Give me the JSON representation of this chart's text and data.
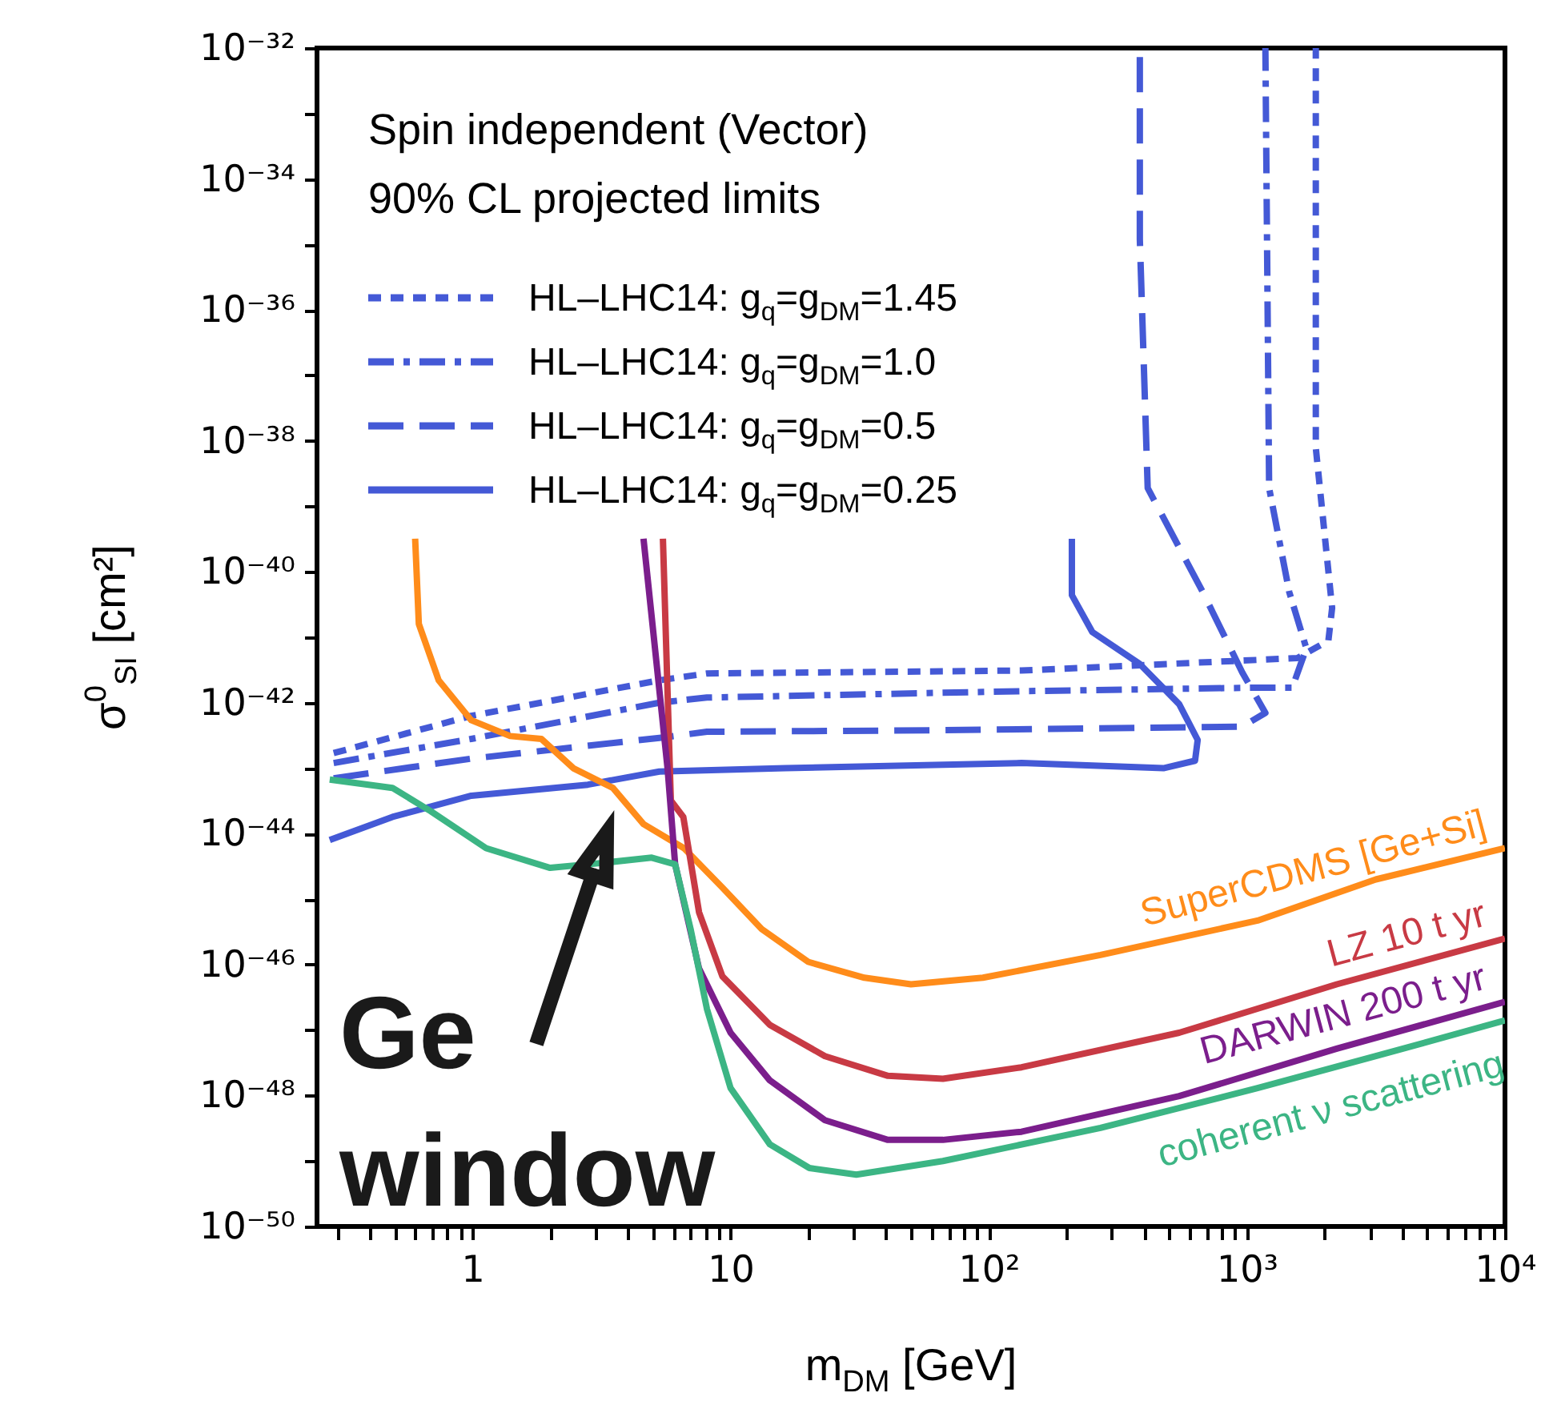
{
  "chart_data": {
    "type": "line",
    "xlabel": "m$_{DM}$ [GeV]",
    "ylabel": "σ$^{0}$$_{SI}$ [cm²]",
    "log": "xy",
    "legend": "top left",
    "grid": false,
    "xlim": [
      0.25,
      10000
    ],
    "ylim": [
      1e-50,
      1e-32
    ],
    "xticks": [
      {
        "value": 0.3,
        "label": null
      },
      {
        "value": 0.4,
        "label": null
      },
      {
        "value": 0.5,
        "label": null
      },
      {
        "value": 0.6,
        "label": null
      },
      {
        "value": 0.7,
        "label": null
      },
      {
        "value": 0.8,
        "label": null
      },
      {
        "value": 0.9,
        "label": null
      },
      1,
      {
        "value": 2,
        "label": null
      },
      {
        "value": 3,
        "label": null
      },
      {
        "value": 4,
        "label": null
      },
      {
        "value": 5,
        "label": null
      },
      {
        "value": 6,
        "label": null
      },
      {
        "value": 7,
        "label": null
      },
      {
        "value": 8,
        "label": null
      },
      {
        "value": 9,
        "label": null
      },
      10,
      {
        "value": 20,
        "label": null
      },
      {
        "value": 30,
        "label": null
      },
      {
        "value": 40,
        "label": null
      },
      {
        "value": 50,
        "label": null
      },
      {
        "value": 60,
        "label": null
      },
      {
        "value": 70,
        "label": null
      },
      {
        "value": 80,
        "label": null
      },
      {
        "value": 90,
        "label": null
      },
      {
        "value": 100,
        "label": "10²"
      },
      {
        "value": 200,
        "label": null
      },
      {
        "value": 300,
        "label": null
      },
      {
        "value": 400,
        "label": null
      },
      {
        "value": 500,
        "label": null
      },
      {
        "value": 600,
        "label": null
      },
      {
        "value": 700,
        "label": null
      },
      {
        "value": 800,
        "label": null
      },
      {
        "value": 900,
        "label": null
      },
      {
        "value": 1000,
        "label": "10³"
      },
      {
        "value": 2000,
        "label": null
      },
      {
        "value": 3000,
        "label": null
      },
      {
        "value": 4000,
        "label": null
      },
      {
        "value": 5000,
        "label": null
      },
      {
        "value": 6000,
        "label": null
      },
      {
        "value": 7000,
        "label": null
      },
      {
        "value": 8000,
        "label": null
      },
      {
        "value": 9000,
        "label": null
      },
      {
        "value": 10000,
        "label": "10⁴"
      }
    ],
    "yticks": [
      {
        "value": 1e-32,
        "label": "10⁻³²"
      },
      {
        "value": 1e-33,
        "label": null
      },
      {
        "value": 1e-34,
        "label": "10⁻³⁴"
      },
      {
        "value": 1e-35,
        "label": null
      },
      {
        "value": 1e-36,
        "label": "10⁻³⁶"
      },
      {
        "value": 1e-37,
        "label": null
      },
      {
        "value": 1e-38,
        "label": "10⁻³⁸"
      },
      {
        "value": 1e-39,
        "label": null
      },
      {
        "value": 1e-40,
        "label": "10⁻⁴⁰"
      },
      {
        "value": 1e-41,
        "label": null
      },
      {
        "value": 1e-42,
        "label": "10⁻⁴²"
      },
      {
        "value": 1e-43,
        "label": null
      },
      {
        "value": 1e-44,
        "label": "10⁻⁴⁴"
      },
      {
        "value": 1e-45,
        "label": null
      },
      {
        "value": 1e-46,
        "label": "10⁻⁴⁶"
      },
      {
        "value": 1e-47,
        "label": null
      },
      {
        "value": 1e-48,
        "label": "10⁻⁴⁸"
      },
      {
        "value": 1e-49,
        "label": null
      },
      {
        "value": 1e-50,
        "label": "10⁻⁵⁰"
      }
    ],
    "annotations": [
      "Spin independent (Vector)",
      "90% CL projected limits",
      "Ge\nwindow"
    ],
    "series": [
      {
        "name": "HL–LHC14: g$_{q}$=g$_{DM}$=1.45",
        "color": "#4459d6",
        "line_style": "dotted",
        "x": [
          0.29,
          0.99,
          5.3,
          8.1,
          134,
          1570,
          2070,
          2140,
          1850,
          1850
        ],
        "values": [
          1.7e-43,
          6.3e-43,
          2.2e-42,
          2.8e-42,
          3.1e-42,
          4.8e-42,
          8.9e-42,
          2.8e-41,
          7.8e-39,
          1e-32
        ]
      },
      {
        "name": "HL–LHC14: g$_{q}$=g$_{DM}$=1.0",
        "color": "#4459d6",
        "line_style": "dashdot",
        "x": [
          0.29,
          0.99,
          5.3,
          8.1,
          134,
          1100,
          1500,
          1700,
          1460,
          1220,
          1180
        ],
        "values": [
          1.2e-43,
          2.8e-43,
          1e-42,
          1.2e-42,
          1.5e-42,
          1.7e-42,
          1.7e-42,
          6.8e-42,
          4.9e-41,
          1.9e-39,
          1e-32
        ]
      },
      {
        "name": "HL–LHC14: g$_{q}$=g$_{DM}$=0.5",
        "color": "#4459d6",
        "line_style": "dashed",
        "x": [
          0.29,
          0.99,
          5.3,
          8.1,
          66.5,
          960,
          1180,
          960,
          675,
          413,
          385,
          385
        ],
        "values": [
          7e-44,
          1.4e-43,
          2.9e-43,
          3.6e-43,
          3.8e-43,
          4.3e-43,
          7e-43,
          2.9e-42,
          4.9e-41,
          1.9e-39,
          1.2e-35,
          1e-32
        ]
      },
      {
        "name": "HL–LHC14: g$_{q}$=g$_{DM}$=0.25",
        "color": "#4459d6",
        "line_style": "solid",
        "x": [
          0.28,
          0.49,
          0.99,
          2.8,
          5.3,
          16.3,
          134,
          475,
          630,
          645,
          547,
          385,
          252,
          210,
          210
        ],
        "values": [
          8e-45,
          1.8e-44,
          3.8e-44,
          5.6e-44,
          8.9e-44,
          1e-43,
          1.2e-43,
          1e-43,
          1.3e-43,
          2.7e-43,
          9.5e-43,
          3.9e-42,
          1.2e-41,
          4.4e-41,
          3.2e-40
        ]
      },
      {
        "name": "SuperCDMS [Ge+Si]",
        "color": "#ff8c1a",
        "x": [
          0.6,
          0.62,
          0.74,
          0.99,
          1.4,
          1.85,
          2.46,
          3.5,
          4.6,
          6.6,
          9.3,
          13.2,
          20,
          33,
          50,
          95,
          271,
          1100,
          3160,
          10000
        ],
        "values": [
          3.2e-40,
          1.6e-41,
          2.2e-42,
          5.4e-43,
          3.1e-43,
          2.8e-43,
          1e-43,
          5e-44,
          1.4e-44,
          6e-45,
          1.5e-45,
          3.5e-46,
          1.1e-46,
          6.3e-47,
          5e-47,
          6.3e-47,
          1.4e-46,
          4.7e-46,
          2e-45,
          6e-45
        ]
      },
      {
        "name": "LZ 10 t yr",
        "color": "#c83a44",
        "x": [
          5.47,
          5.87,
          6.56,
          7.55,
          9.3,
          14.2,
          23.2,
          40.7,
          66.5,
          134,
          547,
          2230,
          10000
        ],
        "values": [
          3.2e-40,
          3.2e-44,
          1.8e-44,
          6.3e-46,
          6.6e-47,
          1.2e-47,
          4e-48,
          2e-48,
          1.8e-48,
          2.7e-48,
          9.1e-48,
          5e-47,
          2.5e-46
        ]
      },
      {
        "name": "DARWIN 200 t yr",
        "color": "#7b1e8c",
        "x": [
          4.6,
          5.7,
          6.1,
          7.55,
          10,
          14.2,
          23.2,
          40.7,
          66.5,
          134,
          547,
          2230,
          10000
        ],
        "values": [
          3.2e-40,
          1e-43,
          3.4e-45,
          8.7e-47,
          9.1e-48,
          1.7e-48,
          4.2e-49,
          2.1e-49,
          2.1e-49,
          2.8e-49,
          9.8e-49,
          5.2e-48,
          2.7e-47
        ]
      },
      {
        "name": "coherent ν scattering",
        "color": "#3cb584",
        "x": [
          0.28,
          0.49,
          0.69,
          1.13,
          2.0,
          3.25,
          4.95,
          6.1,
          7.0,
          8.1,
          10,
          14.2,
          20.2,
          30.7,
          66.5,
          271,
          1100,
          3160,
          10000
        ],
        "values": [
          6.7e-44,
          5e-44,
          2.2e-44,
          6e-45,
          3e-45,
          3.6e-45,
          4.3e-45,
          3.4e-45,
          3.5e-46,
          2.1e-47,
          1.3e-48,
          1.8e-49,
          7.8e-50,
          6.2e-50,
          1e-49,
          3.2e-49,
          1.3e-48,
          4e-48,
          1.4e-47
        ]
      }
    ]
  }
}
